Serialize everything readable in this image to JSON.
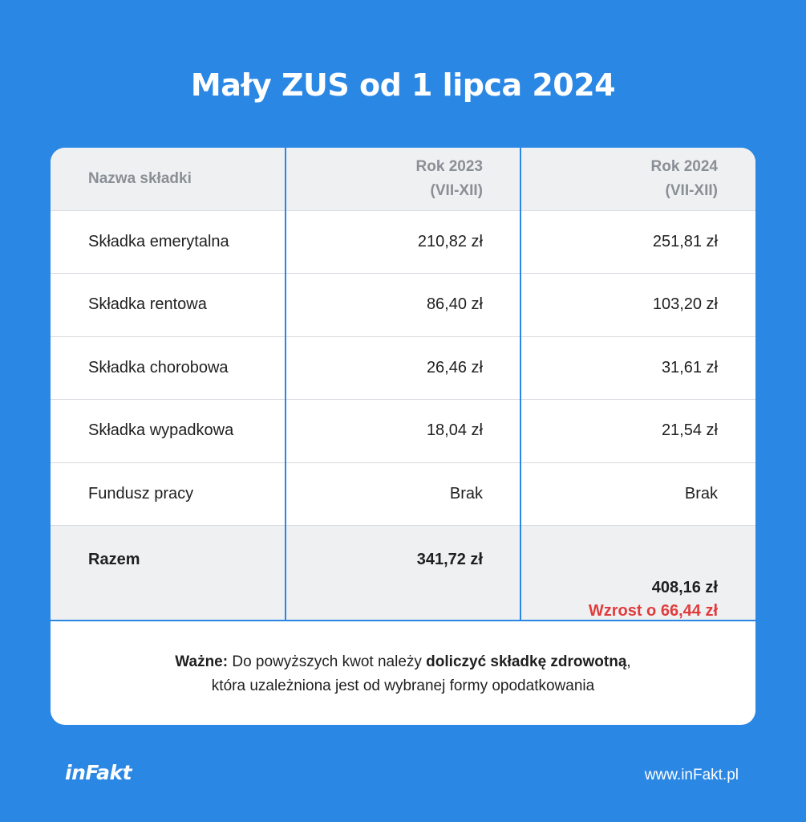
{
  "title": "Mały ZUS od 1 lipca 2024",
  "table": {
    "header": {
      "col1": "Nazwa składki",
      "col2_line1": "Rok 2023",
      "col2_line2": "(VII-XII)",
      "col3_line1": "Rok 2024",
      "col3_line2": "(VII-XII)"
    },
    "rows": [
      {
        "name": "Składka emerytalna",
        "y2023": "210,82 zł",
        "y2024": "251,81 zł"
      },
      {
        "name": "Składka rentowa",
        "y2023": "86,40 zł",
        "y2024": "103,20 zł"
      },
      {
        "name": "Składka chorobowa",
        "y2023": "26,46 zł",
        "y2024": "31,61 zł"
      },
      {
        "name": "Składka wypadkowa",
        "y2023": "18,04 zł",
        "y2024": "21,54 zł"
      },
      {
        "name": "Fundusz pracy",
        "y2023": "Brak",
        "y2024": "Brak"
      }
    ],
    "total": {
      "name": "Razem",
      "y2023": "341,72 zł",
      "y2024": "408,16 zł",
      "increase": "Wzrost o 66,44 zł"
    }
  },
  "note": {
    "bold_prefix": "Ważne:",
    "text_a": " Do powyższych kwot należy ",
    "bold_mid": "doliczyć składkę zdrowotną",
    "text_b": ",",
    "line2": "która uzależniona jest od wybranej formy opodatkowania"
  },
  "footer": {
    "logo": "inFakt",
    "url": "www.inFakt.pl"
  },
  "colors": {
    "background": "#2a87e4",
    "increase": "#e03c3c",
    "header_bg": "#eff0f2"
  }
}
